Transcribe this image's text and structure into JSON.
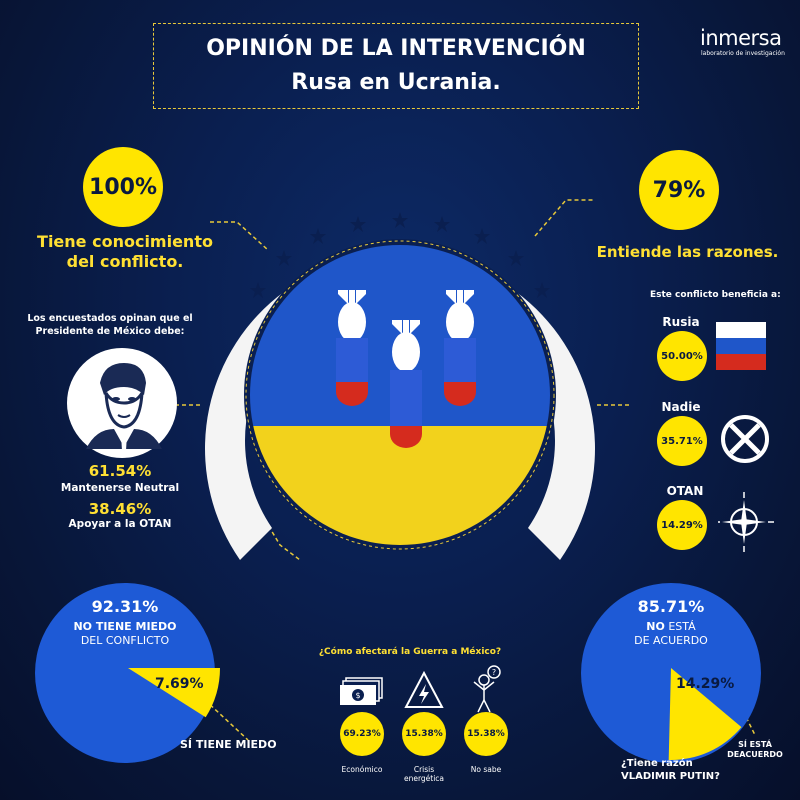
{
  "header": {
    "title_line1": "OPINIÓN DE LA INTERVENCIÓN",
    "title_line2": "Rusa en Ucrania.",
    "brand": "inmersa",
    "brand_sub": "laboratorio de investigación"
  },
  "knowledge": {
    "value": "100%",
    "label_line1": "Tiene conocimiento",
    "label_line2": "del conflicto."
  },
  "reasons": {
    "value": "79%",
    "label": "Entiende las razones."
  },
  "president": {
    "intro_line1": "Los encuestados opinan que el",
    "intro_line2": "Presidente de México debe:",
    "option1_value": "61.54%",
    "option1_label": "Mantenerse Neutral",
    "option2_value": "38.46%",
    "option2_label": "Apoyar a la OTAN"
  },
  "benefit": {
    "heading": "Este conflicto beneficia a:",
    "items": [
      {
        "label": "Rusia",
        "value": "50.00%",
        "icon": "russia-flag-icon"
      },
      {
        "label": "Nadie",
        "value": "35.71%",
        "icon": "crossed-circle-icon"
      },
      {
        "label": "OTAN",
        "value": "14.29%",
        "icon": "nato-compass-icon"
      }
    ]
  },
  "fear": {
    "value_no": "92.31%",
    "label_no_line1": "NO TIENE MIEDO",
    "label_no_line2": "DEL CONFLICTO",
    "value_yes": "7.69%",
    "label_yes": "SÍ TIENE MIEDO",
    "yes_fraction": 0.0769
  },
  "mexico": {
    "question": "¿Cómo afectará la Guerra a México?",
    "items": [
      {
        "value": "69.23%",
        "label_line1": "Económico",
        "label_line2": "",
        "icon": "money-icon"
      },
      {
        "value": "15.38%",
        "label_line1": "Crisis",
        "label_line2": "energética",
        "icon": "energy-warning-icon"
      },
      {
        "value": "15.38%",
        "label_line1": "No sabe",
        "label_line2": "",
        "icon": "confused-person-icon"
      }
    ]
  },
  "putin": {
    "value_no": "85.71%",
    "label_no_line1_bold": "NO",
    "label_no_line1_rest": " ESTÁ",
    "label_no_line2": "DE ACUERDO",
    "value_yes": "14.29%",
    "label_yes_line1": "SÍ ESTÁ",
    "label_yes_line2": "DEACUERDO",
    "question_line1": "¿Tiene razón",
    "question_line2": "VLADIMIR PUTIN?",
    "yes_fraction": 0.1429
  },
  "colors": {
    "accent_yellow": "#ffe500",
    "pie_blue": "#1e5ad6",
    "background_navy": "#0a1f50",
    "ukraine_blue": "#1f56c9",
    "ukraine_yellow": "#f2d21c",
    "russia_red": "#d52b1e"
  }
}
